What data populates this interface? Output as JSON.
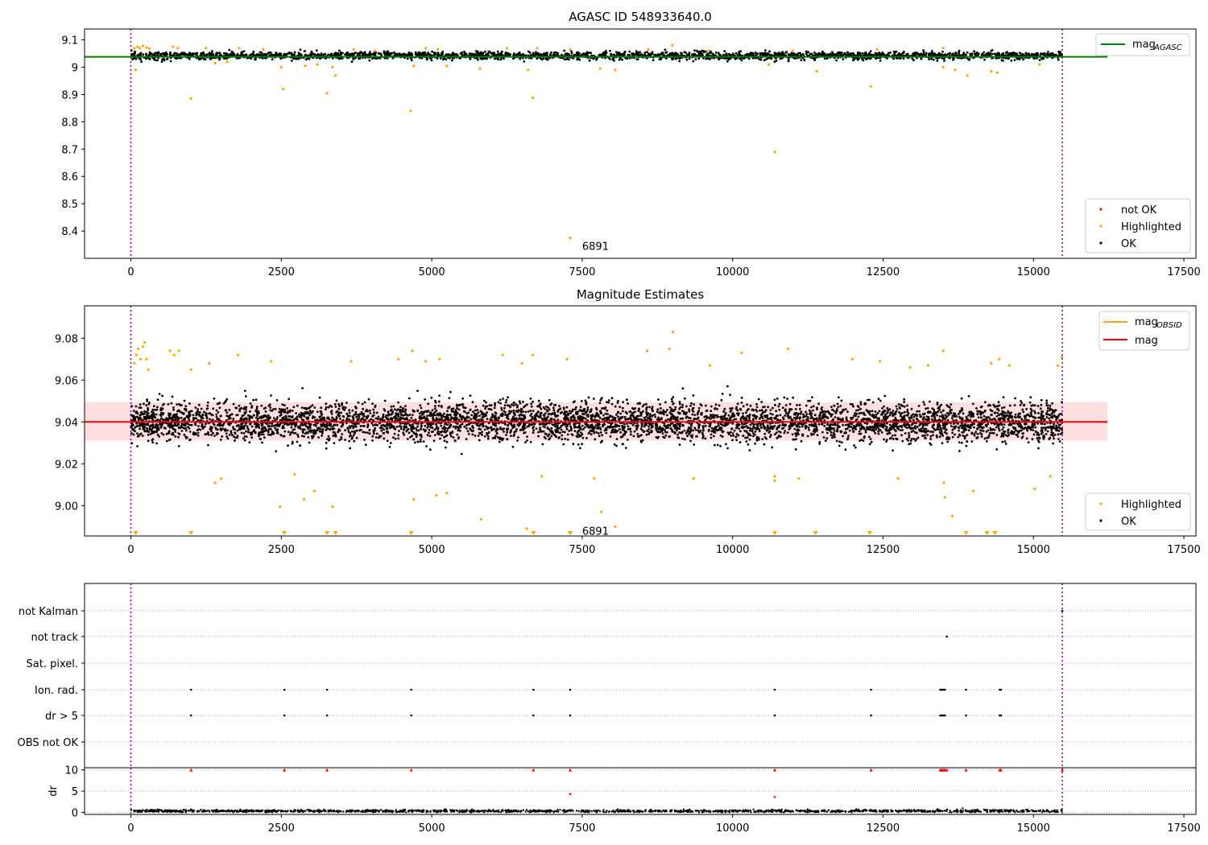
{
  "chart_data": [
    {
      "type": "scatter",
      "panel": "agasc",
      "title": "AGASC ID 548933640.0",
      "xlabel": "",
      "ylabel": "",
      "xlim": [
        -770,
        17700
      ],
      "ylim": [
        8.3,
        9.14
      ],
      "xticks": [
        0,
        2500,
        5000,
        7500,
        10000,
        12500,
        15000,
        17500
      ],
      "yticks": [
        8.4,
        8.5,
        8.6,
        8.7,
        8.8,
        8.9,
        9.0,
        9.1
      ],
      "grid": false,
      "legend_top": {
        "placement": "upper right",
        "entries": [
          {
            "label_main": "mag",
            "label_sub": "AGASC",
            "color": "#008000",
            "kind": "line"
          }
        ]
      },
      "legend_bottom": {
        "placement": "lower right",
        "entries": [
          {
            "label": "not OK",
            "color": "#ff0000",
            "kind": "point"
          },
          {
            "label": "Highlighted",
            "color": "#ffa500",
            "kind": "point"
          },
          {
            "label": "OK",
            "color": "#000000",
            "kind": "point"
          }
        ]
      },
      "vlines": [
        0,
        15480
      ],
      "vline_color": "#800080",
      "hlines": [
        {
          "y": 9.038,
          "color": "#008000",
          "x_range": [
            -770,
            16230
          ]
        }
      ],
      "ok_band": {
        "x_range": [
          0,
          15480
        ],
        "center": 9.042,
        "spread": 0.014,
        "color": "#000000"
      },
      "ok_outliers": [
        [
          380,
          9.03
        ],
        [
          440,
          9.025
        ],
        [
          520,
          9.028
        ]
      ],
      "highlighted": [
        [
          60,
          9.07
        ],
        [
          80,
          8.99
        ],
        [
          110,
          9.075
        ],
        [
          150,
          9.07
        ],
        [
          200,
          9.078
        ],
        [
          260,
          9.072
        ],
        [
          310,
          9.068
        ],
        [
          700,
          9.075
        ],
        [
          780,
          9.07
        ],
        [
          1000,
          8.885
        ],
        [
          1250,
          9.07
        ],
        [
          1400,
          9.015
        ],
        [
          1600,
          9.02
        ],
        [
          1800,
          9.07
        ],
        [
          2200,
          9.065
        ],
        [
          2530,
          8.92
        ],
        [
          2500,
          9.0
        ],
        [
          2900,
          9.005
        ],
        [
          3100,
          9.01
        ],
        [
          3260,
          8.905
        ],
        [
          3350,
          9.0
        ],
        [
          3400,
          8.97
        ],
        [
          3700,
          9.065
        ],
        [
          4050,
          9.06
        ],
        [
          4650,
          8.84
        ],
        [
          4700,
          9.005
        ],
        [
          4900,
          9.07
        ],
        [
          5100,
          9.065
        ],
        [
          5250,
          9.005
        ],
        [
          5800,
          8.995
        ],
        [
          6250,
          9.07
        ],
        [
          6600,
          8.99
        ],
        [
          6680,
          8.888
        ],
        [
          6750,
          9.07
        ],
        [
          7300,
          9.065
        ],
        [
          7800,
          8.995
        ],
        [
          8050,
          8.99
        ],
        [
          8600,
          9.065
        ],
        [
          9000,
          9.08
        ],
        [
          9600,
          9.06
        ],
        [
          10700,
          8.69
        ],
        [
          10600,
          9.01
        ],
        [
          11000,
          9.06
        ],
        [
          11400,
          8.985
        ],
        [
          12300,
          8.93
        ],
        [
          12400,
          9.065
        ],
        [
          13500,
          9.0
        ],
        [
          13500,
          9.07
        ],
        [
          13700,
          8.99
        ],
        [
          13900,
          8.97
        ],
        [
          14300,
          8.985
        ],
        [
          14400,
          8.98
        ],
        [
          15100,
          9.01
        ]
      ],
      "not_ok": [],
      "annotation": {
        "text": "6891",
        "x": 7500,
        "y": 8.345
      },
      "marked_points": [
        [
          7300,
          8.375
        ]
      ]
    },
    {
      "type": "scatter",
      "panel": "estimates",
      "title": "Magnitude Estimates",
      "xlabel": "",
      "ylabel": "",
      "xlim": [
        -770,
        17700
      ],
      "ylim": [
        8.9855,
        9.0955
      ],
      "xticks": [
        0,
        2500,
        5000,
        7500,
        10000,
        12500,
        15000,
        17500
      ],
      "yticks": [
        9.0,
        9.02,
        9.04,
        9.06,
        9.08
      ],
      "ytick_labels": [
        "9.00",
        "9.02",
        "9.04",
        "9.06",
        "9.08"
      ],
      "grid": false,
      "legend_top": {
        "placement": "upper right",
        "entries": [
          {
            "label_main": "mag",
            "label_sub": "OBSID",
            "color": "#ffa500",
            "kind": "line"
          },
          {
            "label": "mag",
            "color": "#ff0000",
            "kind": "line"
          }
        ]
      },
      "legend_bottom": {
        "placement": "lower right",
        "entries": [
          {
            "label": "Highlighted",
            "color": "#ffa500",
            "kind": "point"
          },
          {
            "label": "OK",
            "color": "#000000",
            "kind": "point"
          }
        ]
      },
      "vlines": [
        0,
        15480
      ],
      "vline_color": "#800080",
      "mean": 9.04,
      "band": [
        9.031,
        9.0495
      ],
      "band_x_range": [
        -770,
        16230
      ],
      "ok_band": {
        "x_range": [
          0,
          15480
        ],
        "center": 9.04,
        "spread": 0.009,
        "color": "#000000"
      },
      "highlighted": [
        [
          60,
          9.068
        ],
        [
          90,
          9.072
        ],
        [
          120,
          9.075
        ],
        [
          160,
          9.07
        ],
        [
          200,
          9.076
        ],
        [
          230,
          9.078
        ],
        [
          260,
          9.07
        ],
        [
          290,
          9.065
        ],
        [
          650,
          9.074
        ],
        [
          720,
          9.072
        ],
        [
          800,
          9.074
        ],
        [
          1000,
          9.065
        ],
        [
          1300,
          9.068
        ],
        [
          1400,
          9.011
        ],
        [
          1500,
          9.013
        ],
        [
          1780,
          9.072
        ],
        [
          2330,
          9.069
        ],
        [
          2480,
          8.9995
        ],
        [
          2720,
          9.015
        ],
        [
          2880,
          9.003
        ],
        [
          3050,
          9.007
        ],
        [
          3350,
          8.9995
        ],
        [
          3660,
          9.069
        ],
        [
          4450,
          9.07
        ],
        [
          4680,
          9.074
        ],
        [
          4700,
          9.003
        ],
        [
          4900,
          9.069
        ],
        [
          5080,
          9.005
        ],
        [
          5130,
          9.07
        ],
        [
          5250,
          9.006
        ],
        [
          5820,
          8.9935
        ],
        [
          6180,
          9.072
        ],
        [
          6500,
          9.068
        ],
        [
          6580,
          8.989
        ],
        [
          6680,
          9.072
        ],
        [
          6830,
          9.014
        ],
        [
          7250,
          9.07
        ],
        [
          7700,
          9.013
        ],
        [
          7820,
          8.997
        ],
        [
          8050,
          8.99
        ],
        [
          8580,
          9.074
        ],
        [
          8950,
          9.075
        ],
        [
          9010,
          9.083
        ],
        [
          9350,
          9.013
        ],
        [
          9620,
          9.067
        ],
        [
          10150,
          9.073
        ],
        [
          10700,
          9.012
        ],
        [
          10700,
          9.014
        ],
        [
          10920,
          9.075
        ],
        [
          11100,
          9.013
        ],
        [
          11990,
          9.07
        ],
        [
          12450,
          9.069
        ],
        [
          12750,
          9.013
        ],
        [
          12950,
          9.066
        ],
        [
          13250,
          9.067
        ],
        [
          13500,
          9.074
        ],
        [
          13510,
          9.011
        ],
        [
          13530,
          9.004
        ],
        [
          13650,
          8.995
        ],
        [
          14000,
          9.007
        ],
        [
          14300,
          9.068
        ],
        [
          14430,
          9.07
        ],
        [
          14600,
          9.067
        ],
        [
          15020,
          9.008
        ],
        [
          15280,
          9.014
        ],
        [
          15400,
          9.067
        ],
        [
          15470,
          9.071
        ]
      ],
      "out_of_range_low": [
        80,
        1000,
        2550,
        3260,
        3400,
        4660,
        6690,
        7300,
        10700,
        11380,
        12280,
        13880,
        14230,
        14360
      ],
      "annotation": {
        "text": "6891",
        "x": 7500,
        "y": 8.988
      }
    },
    {
      "type": "scatter",
      "panel": "flags",
      "title": "",
      "xlabel": "",
      "ylabel": "",
      "xlim": [
        -770,
        17700
      ],
      "categories": [
        "not Kalman",
        "not track",
        "Sat. pixel.",
        "Ion. rad.",
        "dr > 5",
        "OBS not OK"
      ],
      "grid": "horizontal-dotted",
      "vlines": [
        0,
        15480
      ],
      "vline_color": "#800080",
      "flag_points": {
        "not Kalman": [
          15480
        ],
        "not track": [
          13560
        ],
        "Sat. pixel.": [],
        "Ion. rad.": [
          1000,
          2550,
          3260,
          4660,
          6690,
          7300,
          10700,
          12300,
          13450,
          13470,
          13490,
          13510,
          13530,
          13880,
          14440,
          14460
        ],
        "dr > 5": [
          1000,
          2550,
          3260,
          4660,
          6690,
          7300,
          10700,
          12300,
          13450,
          13470,
          13490,
          13510,
          13530,
          13880,
          14440,
          14460
        ],
        "OBS not OK": []
      }
    },
    {
      "type": "scatter",
      "panel": "dr",
      "title": "",
      "xlabel": "",
      "ylabel": "dr",
      "xlim": [
        -770,
        17700
      ],
      "ylim": [
        -0.5,
        10.5
      ],
      "xticks": [
        0,
        2500,
        5000,
        7500,
        10000,
        12500,
        15000,
        17500
      ],
      "yticks": [
        0,
        5,
        10
      ],
      "grid": "horizontal-dotted",
      "vlines": [
        0,
        15480
      ],
      "vline_color": "#800080",
      "baseline": {
        "x_range": [
          0,
          15480
        ],
        "center": 0.3,
        "spread": 0.25,
        "color": "#000000"
      },
      "capped_points": [
        1000,
        2550,
        3260,
        4660,
        6690,
        7300,
        10700,
        12300,
        13450,
        13470,
        13490,
        13510,
        13530,
        13560,
        13880,
        14440,
        14460,
        15480
      ],
      "red_points": [
        [
          7300,
          4.3
        ],
        [
          10700,
          3.6
        ]
      ],
      "cap_value": 10
    }
  ]
}
